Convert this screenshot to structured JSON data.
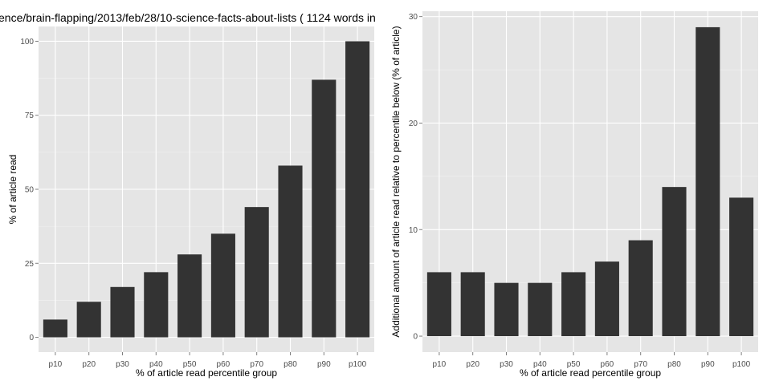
{
  "title": "ence/brain-flapping/2013/feb/28/10-science-facts-about-lists ( 1124 words in",
  "colors": {
    "panel": "#e5e5e5",
    "grid_major": "#ffffff",
    "grid_minor": "#f2f2f2",
    "bar": "#333333",
    "tick": "#4d4d4d"
  },
  "chart_data": [
    {
      "type": "bar",
      "title": "ence/brain-flapping/2013/feb/28/10-science-facts-about-lists ( 1124 words in",
      "xlabel": "% of article read percentile group",
      "ylabel": "% of article read",
      "categories": [
        "p10",
        "p20",
        "p30",
        "p40",
        "p50",
        "p60",
        "p70",
        "p80",
        "p90",
        "p100"
      ],
      "values": [
        6,
        12,
        17,
        22,
        28,
        35,
        44,
        58,
        87,
        100
      ],
      "ylim": [
        -5,
        105
      ],
      "yticks": [
        0,
        25,
        50,
        75,
        100
      ],
      "grid": true,
      "legend": "none"
    },
    {
      "type": "bar",
      "xlabel": "% of article read percentile group",
      "ylabel": "Additional amount of article read relative to percentile below (% of article)",
      "categories": [
        "p10",
        "p20",
        "p30",
        "p40",
        "p50",
        "p60",
        "p70",
        "p80",
        "p90",
        "p100"
      ],
      "values": [
        6,
        6,
        5,
        5,
        6,
        7,
        9,
        14,
        29,
        13
      ],
      "ylim": [
        -1.5,
        30.5
      ],
      "yticks": [
        0,
        10,
        20,
        30
      ],
      "grid": true,
      "legend": "none"
    }
  ]
}
